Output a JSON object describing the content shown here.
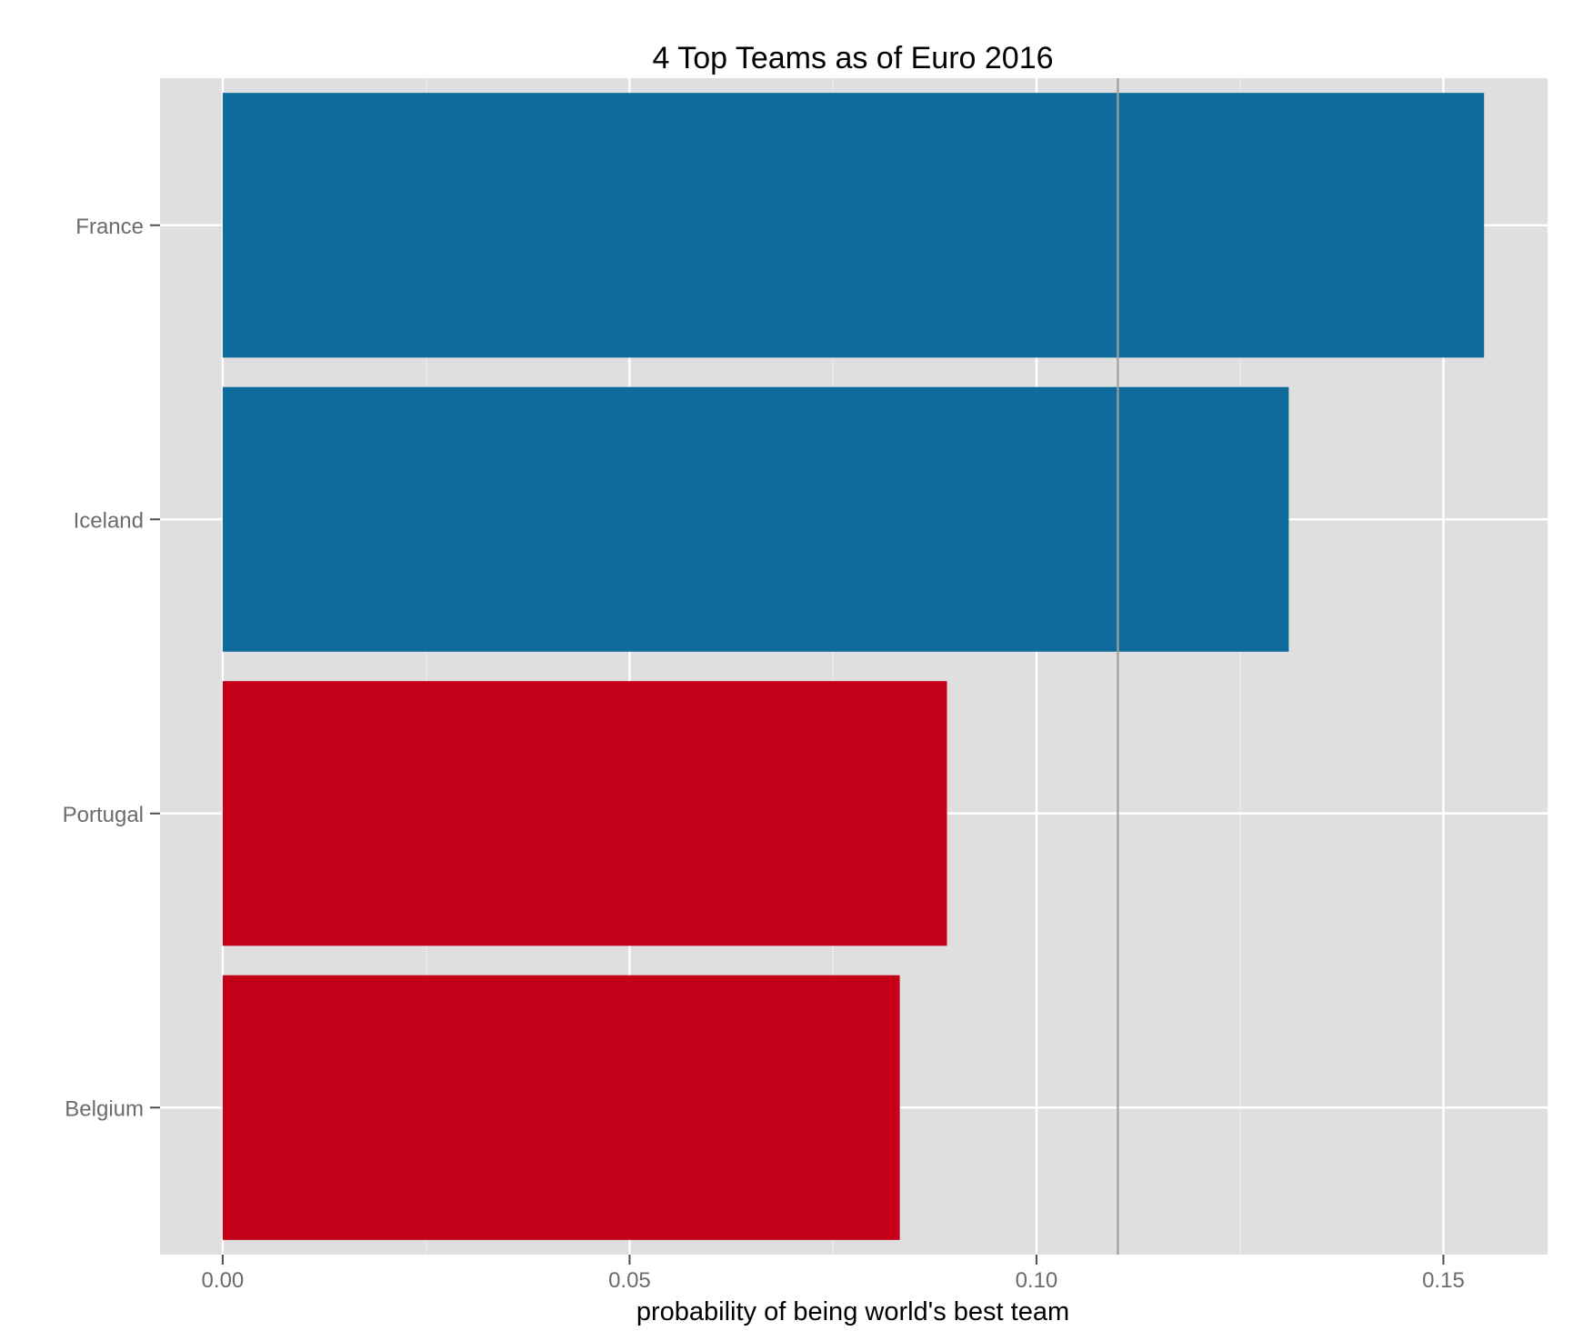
{
  "chart_data": {
    "type": "bar",
    "orientation": "horizontal",
    "title": "4 Top Teams as of Euro 2016",
    "xlabel": "probability of being world's best team",
    "ylabel": "",
    "categories": [
      "France",
      "Iceland",
      "Portugal",
      "Belgium"
    ],
    "values": [
      0.155,
      0.131,
      0.089,
      0.0832
    ],
    "bar_colors": [
      "#0f6b9c",
      "#0f6b9c",
      "#c40018",
      "#c40018"
    ],
    "xlim": [
      -0.0077,
      0.1628
    ],
    "x_ticks": [
      0.0,
      0.05,
      0.1,
      0.15
    ],
    "x_tick_labels": [
      "0.00",
      "0.05",
      "0.10",
      "0.15"
    ],
    "reference_line": {
      "x": 0.11,
      "color": "#a0a0a0"
    },
    "grid": true,
    "legend": "none",
    "colors": {
      "panel_background": "#e0dfe0",
      "grid_major": "#ffffff",
      "grid_minor": "#ececec",
      "axis_text": "#6b6b6b",
      "title_text": "#000000"
    }
  }
}
